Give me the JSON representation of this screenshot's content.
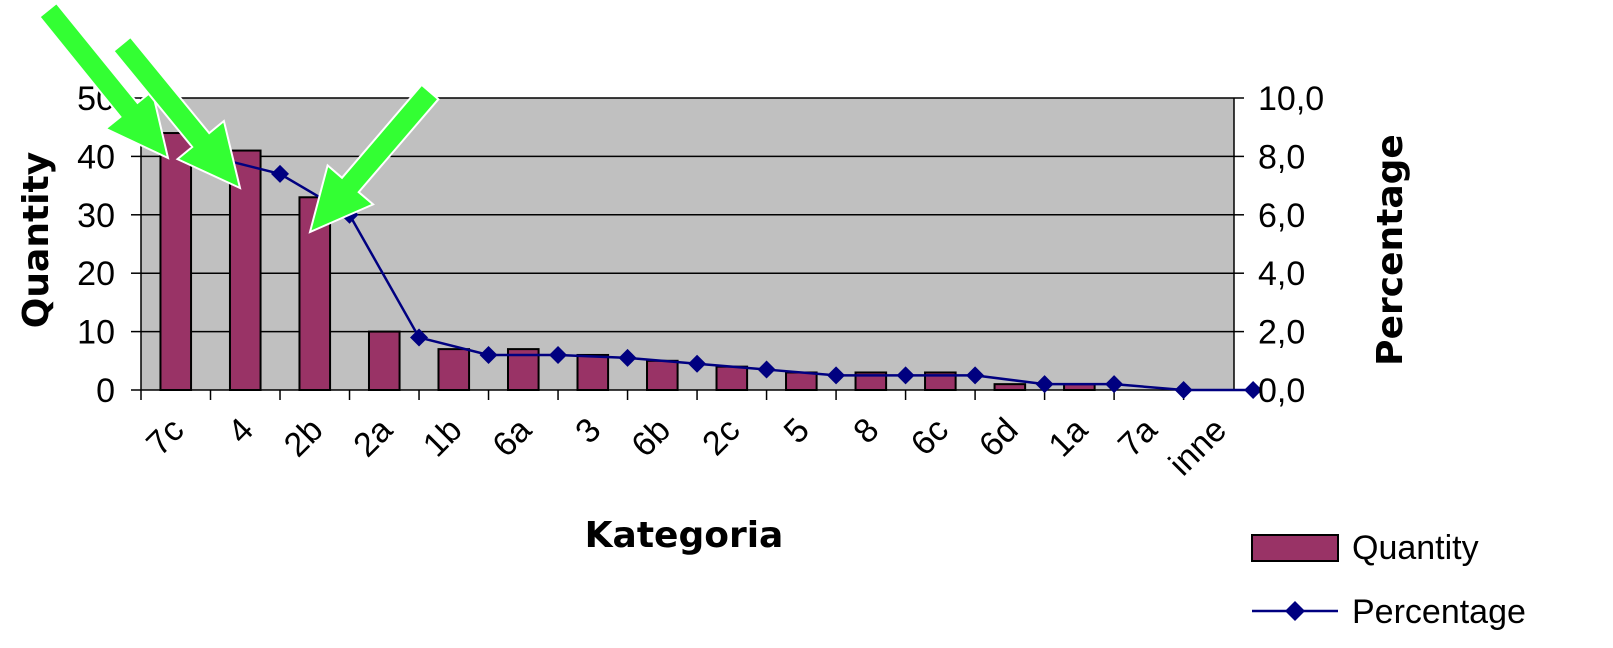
{
  "chart_data": {
    "type": "bar",
    "categories": [
      "7c",
      "4",
      "2b",
      "2a",
      "1b",
      "6a",
      "3",
      "6b",
      "2c",
      "5",
      "8",
      "6c",
      "6d",
      "1a",
      "7a",
      "inne"
    ],
    "series": [
      {
        "name": "Quantity",
        "type": "bar",
        "axis": "left",
        "color": "#993366",
        "values": [
          44,
          41,
          33,
          10,
          7,
          7,
          6,
          5,
          4,
          3,
          3,
          3,
          1,
          1,
          0,
          0
        ]
      },
      {
        "name": "Percentage",
        "type": "line",
        "axis": "right",
        "color": "#000080",
        "marker": "diamond",
        "values": [
          8.0,
          7.4,
          6.0,
          1.8,
          1.2,
          1.2,
          1.1,
          0.9,
          0.7,
          0.5,
          0.5,
          0.5,
          0.2,
          0.2,
          0.0,
          0.0
        ]
      }
    ],
    "xlabel": "Kategoria",
    "ylabel": "Quantity",
    "y2label": "Percentage",
    "ylim": [
      0,
      50
    ],
    "y2lim": [
      0,
      10
    ],
    "yticks": [
      "0",
      "10",
      "20",
      "30",
      "40",
      "50"
    ],
    "y2ticks": [
      "0,0",
      "2,0",
      "4,0",
      "6,0",
      "8,0",
      "10,0"
    ],
    "grid": true,
    "plot_background": "#c0c0c0",
    "legend": "bottom-right",
    "annotations": [
      {
        "type": "arrow",
        "color": "#33ff33",
        "points_to": "7c"
      },
      {
        "type": "arrow",
        "color": "#33ff33",
        "points_to": "4"
      },
      {
        "type": "arrow",
        "color": "#33ff33",
        "points_to": "2b"
      }
    ]
  }
}
